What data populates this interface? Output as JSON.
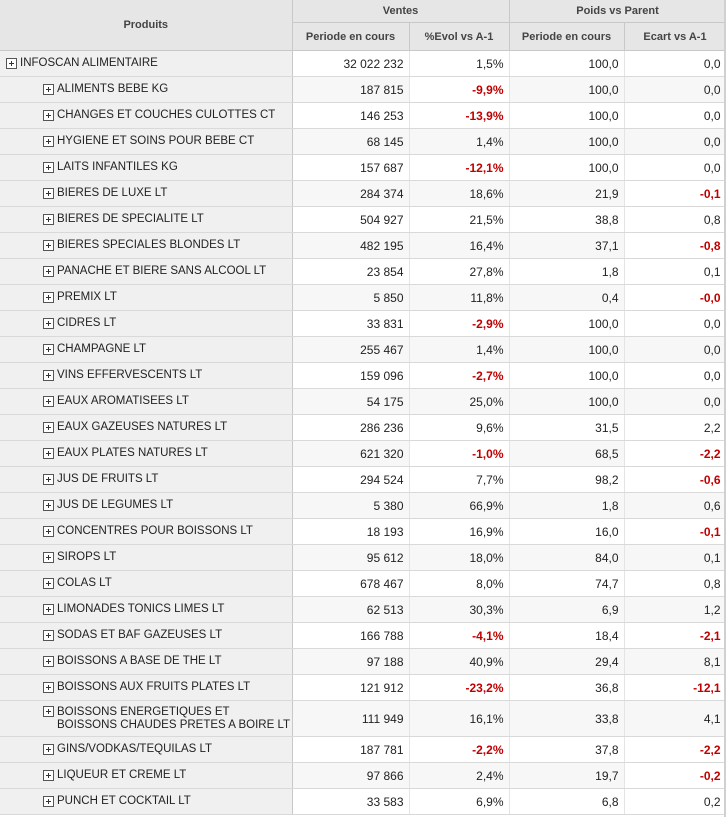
{
  "header": {
    "products_label": "Produits",
    "group_ventes": "Ventes",
    "group_poids": "Poids vs Parent",
    "col_periode_ventes": "Periode en cours",
    "col_evol": "%Evol vs A-1",
    "col_periode_poids": "Periode en cours",
    "col_ecart": "Ecart vs A-1"
  },
  "colors": {
    "negative": "#c00000",
    "header_bg": "#e6e6e6",
    "name_bg": "#f0f0f0"
  },
  "rows": [
    {
      "label": "INFOSCAN ALIMENTAIRE",
      "level": 0,
      "ventes": "32 022 232",
      "evol": "1,5%",
      "evol_neg": false,
      "poids": "100,0",
      "ecart": "0,0",
      "ecart_neg": false
    },
    {
      "label": "ALIMENTS BEBE KG",
      "level": 1,
      "ventes": "187 815",
      "evol": "-9,9%",
      "evol_neg": true,
      "poids": "100,0",
      "ecart": "0,0",
      "ecart_neg": false
    },
    {
      "label": "CHANGES ET COUCHES CULOTTES CT",
      "level": 1,
      "ventes": "146 253",
      "evol": "-13,9%",
      "evol_neg": true,
      "poids": "100,0",
      "ecart": "0,0",
      "ecart_neg": false
    },
    {
      "label": "HYGIENE ET SOINS POUR BEBE CT",
      "level": 1,
      "ventes": "68 145",
      "evol": "1,4%",
      "evol_neg": false,
      "poids": "100,0",
      "ecart": "0,0",
      "ecart_neg": false
    },
    {
      "label": "LAITS INFANTILES KG",
      "level": 1,
      "ventes": "157 687",
      "evol": "-12,1%",
      "evol_neg": true,
      "poids": "100,0",
      "ecart": "0,0",
      "ecart_neg": false
    },
    {
      "label": "BIERES DE LUXE LT",
      "level": 1,
      "ventes": "284 374",
      "evol": "18,6%",
      "evol_neg": false,
      "poids": "21,9",
      "ecart": "-0,1",
      "ecart_neg": true
    },
    {
      "label": "BIERES DE SPECIALITE LT",
      "level": 1,
      "ventes": "504 927",
      "evol": "21,5%",
      "evol_neg": false,
      "poids": "38,8",
      "ecart": "0,8",
      "ecart_neg": false
    },
    {
      "label": "BIERES SPECIALES BLONDES LT",
      "level": 1,
      "ventes": "482 195",
      "evol": "16,4%",
      "evol_neg": false,
      "poids": "37,1",
      "ecart": "-0,8",
      "ecart_neg": true
    },
    {
      "label": "PANACHE ET BIERE SANS ALCOOL LT",
      "level": 1,
      "ventes": "23 854",
      "evol": "27,8%",
      "evol_neg": false,
      "poids": "1,8",
      "ecart": "0,1",
      "ecart_neg": false
    },
    {
      "label": "PREMIX LT",
      "level": 1,
      "ventes": "5 850",
      "evol": "11,8%",
      "evol_neg": false,
      "poids": "0,4",
      "ecart": "-0,0",
      "ecart_neg": true
    },
    {
      "label": "CIDRES LT",
      "level": 1,
      "ventes": "33 831",
      "evol": "-2,9%",
      "evol_neg": true,
      "poids": "100,0",
      "ecart": "0,0",
      "ecart_neg": false
    },
    {
      "label": "CHAMPAGNE LT",
      "level": 1,
      "ventes": "255 467",
      "evol": "1,4%",
      "evol_neg": false,
      "poids": "100,0",
      "ecart": "0,0",
      "ecart_neg": false
    },
    {
      "label": "VINS EFFERVESCENTS LT",
      "level": 1,
      "ventes": "159 096",
      "evol": "-2,7%",
      "evol_neg": true,
      "poids": "100,0",
      "ecart": "0,0",
      "ecart_neg": false
    },
    {
      "label": "EAUX AROMATISEES LT",
      "level": 1,
      "ventes": "54 175",
      "evol": "25,0%",
      "evol_neg": false,
      "poids": "100,0",
      "ecart": "0,0",
      "ecart_neg": false
    },
    {
      "label": "EAUX GAZEUSES NATURES LT",
      "level": 1,
      "ventes": "286 236",
      "evol": "9,6%",
      "evol_neg": false,
      "poids": "31,5",
      "ecart": "2,2",
      "ecart_neg": false
    },
    {
      "label": "EAUX PLATES NATURES LT",
      "level": 1,
      "ventes": "621 320",
      "evol": "-1,0%",
      "evol_neg": true,
      "poids": "68,5",
      "ecart": "-2,2",
      "ecart_neg": true
    },
    {
      "label": "JUS DE FRUITS LT",
      "level": 1,
      "ventes": "294 524",
      "evol": "7,7%",
      "evol_neg": false,
      "poids": "98,2",
      "ecart": "-0,6",
      "ecart_neg": true
    },
    {
      "label": "JUS DE LEGUMES LT",
      "level": 1,
      "ventes": "5 380",
      "evol": "66,9%",
      "evol_neg": false,
      "poids": "1,8",
      "ecart": "0,6",
      "ecart_neg": false
    },
    {
      "label": "CONCENTRES POUR BOISSONS LT",
      "level": 1,
      "ventes": "18 193",
      "evol": "16,9%",
      "evol_neg": false,
      "poids": "16,0",
      "ecart": "-0,1",
      "ecart_neg": true
    },
    {
      "label": "SIROPS LT",
      "level": 1,
      "ventes": "95 612",
      "evol": "18,0%",
      "evol_neg": false,
      "poids": "84,0",
      "ecart": "0,1",
      "ecart_neg": false
    },
    {
      "label": "COLAS LT",
      "level": 1,
      "ventes": "678 467",
      "evol": "8,0%",
      "evol_neg": false,
      "poids": "74,7",
      "ecart": "0,8",
      "ecart_neg": false
    },
    {
      "label": "LIMONADES TONICS LIMES LT",
      "level": 1,
      "ventes": "62 513",
      "evol": "30,3%",
      "evol_neg": false,
      "poids": "6,9",
      "ecart": "1,2",
      "ecart_neg": false
    },
    {
      "label": "SODAS ET BAF GAZEUSES LT",
      "level": 1,
      "ventes": "166 788",
      "evol": "-4,1%",
      "evol_neg": true,
      "poids": "18,4",
      "ecart": "-2,1",
      "ecart_neg": true
    },
    {
      "label": "BOISSONS A BASE DE THE LT",
      "level": 1,
      "ventes": "97 188",
      "evol": "40,9%",
      "evol_neg": false,
      "poids": "29,4",
      "ecart": "8,1",
      "ecart_neg": false
    },
    {
      "label": "BOISSONS AUX FRUITS PLATES LT",
      "level": 1,
      "ventes": "121 912",
      "evol": "-23,2%",
      "evol_neg": true,
      "poids": "36,8",
      "ecart": "-12,1",
      "ecart_neg": true
    },
    {
      "label": "BOISSONS ENERGETIQUES ET BOISSONS CHAUDES PRETES A BOIRE LT",
      "level": 1,
      "ventes": "111 949",
      "evol": "16,1%",
      "evol_neg": false,
      "poids": "33,8",
      "ecart": "4,1",
      "ecart_neg": false,
      "tall": true
    },
    {
      "label": "GINS/VODKAS/TEQUILAS LT",
      "level": 1,
      "ventes": "187 781",
      "evol": "-2,2%",
      "evol_neg": true,
      "poids": "37,8",
      "ecart": "-2,2",
      "ecart_neg": true
    },
    {
      "label": "LIQUEUR ET CREME LT",
      "level": 1,
      "ventes": "97 866",
      "evol": "2,4%",
      "evol_neg": false,
      "poids": "19,7",
      "ecart": "-0,2",
      "ecart_neg": true
    },
    {
      "label": "PUNCH ET COCKTAIL LT",
      "level": 1,
      "ventes": "33 583",
      "evol": "6,9%",
      "evol_neg": false,
      "poids": "6,8",
      "ecart": "0,2",
      "ecart_neg": false
    }
  ]
}
